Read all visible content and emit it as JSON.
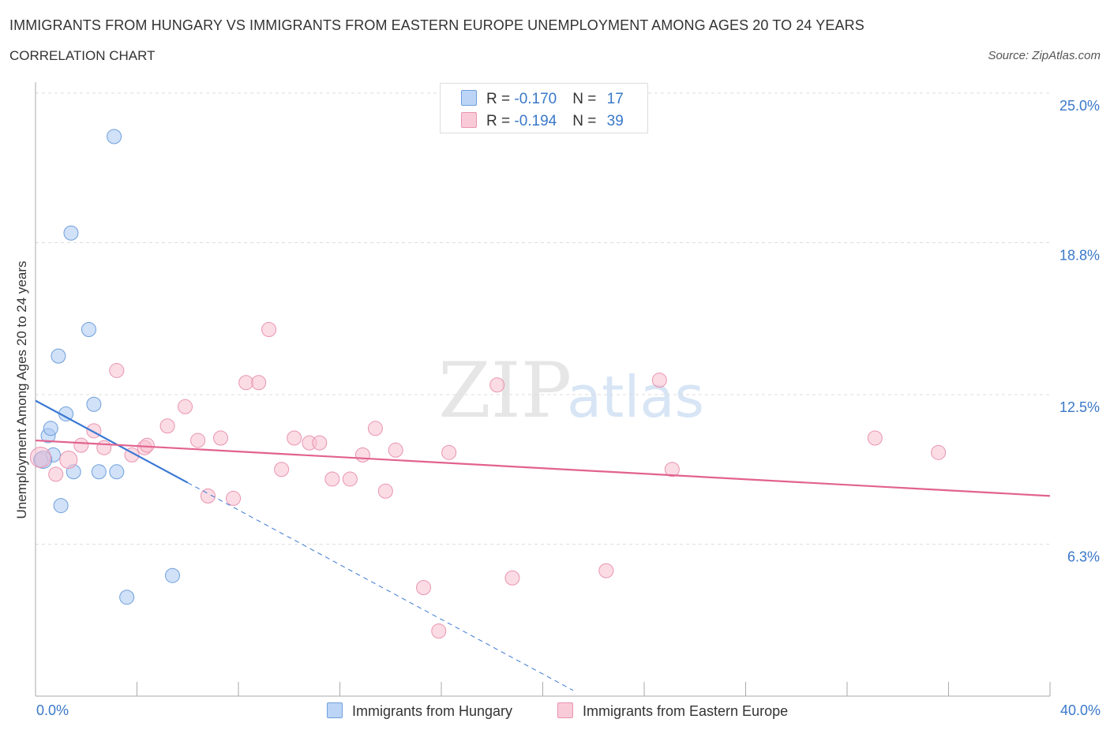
{
  "title": "IMMIGRANTS FROM HUNGARY VS IMMIGRANTS FROM EASTERN EUROPE UNEMPLOYMENT AMONG AGES 20 TO 24 YEARS",
  "subtitle": "CORRELATION CHART",
  "source": "Source: ZipAtlas.com",
  "watermark": {
    "zip": "ZIP",
    "atlas": "atlas"
  },
  "legend": {
    "hungary": {
      "r_label": "R = ",
      "r_value": "-0.170",
      "n_label": "N = ",
      "n_value": "17"
    },
    "eastern": {
      "r_label": "R = ",
      "r_value": "-0.194",
      "n_label": "N = ",
      "n_value": "39"
    }
  },
  "colors": {
    "hungary_fill": "#a9c8f2",
    "hungary_stroke": "#6f9fdc",
    "hungary_line": "#3a78d4",
    "eastern_fill": "#f7bfd0",
    "eastern_stroke": "#e994b0",
    "eastern_line": "#e2628e",
    "tick_text": "#3a78c9",
    "grid": "#dddddd"
  },
  "chart_data": {
    "type": "scatter",
    "title": "IMMIGRANTS FROM HUNGARY VS IMMIGRANTS FROM EASTERN EUROPE UNEMPLOYMENT AMONG AGES 20 TO 24 YEARS",
    "xlabel": "",
    "ylabel": "Unemployment Among Ages 20 to 24 years",
    "xlim": [
      0,
      40
    ],
    "ylim": [
      0,
      25
    ],
    "x_tick_labels": [
      "0.0%",
      "40.0%"
    ],
    "y_ticks": [
      6.3,
      12.5,
      18.8,
      25.0
    ],
    "y_tick_labels": [
      "6.3%",
      "12.5%",
      "18.8%",
      "25.0%"
    ],
    "grid": true,
    "legend_position": "top-center",
    "series": [
      {
        "name": "Immigrants from Hungary",
        "color_key": "hungary",
        "R": -0.17,
        "N": 17,
        "trend": {
          "x0": 0,
          "y0": 12.25,
          "x1": 6.0,
          "y1": 8.85,
          "dash_to_x": 21.2
        },
        "points": [
          [
            0.2,
            9.8
          ],
          [
            0.5,
            10.8
          ],
          [
            0.6,
            11.1
          ],
          [
            0.7,
            10.0
          ],
          [
            1.0,
            7.9
          ],
          [
            1.2,
            11.7
          ],
          [
            1.4,
            19.2
          ],
          [
            1.5,
            9.3
          ],
          [
            2.1,
            15.2
          ],
          [
            2.3,
            12.1
          ],
          [
            3.1,
            23.2
          ],
          [
            3.2,
            9.3
          ],
          [
            0.9,
            14.1
          ],
          [
            2.5,
            9.3
          ],
          [
            3.6,
            4.1
          ],
          [
            5.4,
            5.0
          ],
          [
            0.3,
            9.8
          ]
        ],
        "sizes": [
          9,
          9,
          9,
          9,
          9,
          9,
          9,
          9,
          9,
          9,
          9,
          9,
          9,
          9,
          9,
          9,
          11
        ]
      },
      {
        "name": "Immigrants from Eastern Europe",
        "color_key": "eastern",
        "R": -0.194,
        "N": 39,
        "trend": {
          "x0": 0,
          "y0": 10.6,
          "x1": 40,
          "y1": 8.3
        },
        "points": [
          [
            0.2,
            9.9
          ],
          [
            0.8,
            9.2
          ],
          [
            1.3,
            9.8
          ],
          [
            1.8,
            10.4
          ],
          [
            2.3,
            11.0
          ],
          [
            2.7,
            10.3
          ],
          [
            3.2,
            13.5
          ],
          [
            3.8,
            10.0
          ],
          [
            4.3,
            10.3
          ],
          [
            4.4,
            10.4
          ],
          [
            5.2,
            11.2
          ],
          [
            5.9,
            12.0
          ],
          [
            6.4,
            10.6
          ],
          [
            6.8,
            8.3
          ],
          [
            7.3,
            10.7
          ],
          [
            7.8,
            8.2
          ],
          [
            8.3,
            13.0
          ],
          [
            8.8,
            13.0
          ],
          [
            9.2,
            15.2
          ],
          [
            9.7,
            9.4
          ],
          [
            10.2,
            10.7
          ],
          [
            10.8,
            10.5
          ],
          [
            11.2,
            10.5
          ],
          [
            11.7,
            9.0
          ],
          [
            12.4,
            9.0
          ],
          [
            12.9,
            10.0
          ],
          [
            13.4,
            11.1
          ],
          [
            13.8,
            8.5
          ],
          [
            14.2,
            10.2
          ],
          [
            15.3,
            4.5
          ],
          [
            15.9,
            2.7
          ],
          [
            16.3,
            10.1
          ],
          [
            18.2,
            12.9
          ],
          [
            18.8,
            4.9
          ],
          [
            22.5,
            5.2
          ],
          [
            24.6,
            13.1
          ],
          [
            25.1,
            9.4
          ],
          [
            33.1,
            10.7
          ],
          [
            35.6,
            10.1
          ]
        ],
        "sizes": [
          13,
          9,
          11,
          9,
          9,
          9,
          9,
          9,
          9,
          9,
          9,
          9,
          9,
          9,
          9,
          9,
          9,
          9,
          9,
          9,
          9,
          9,
          9,
          9,
          9,
          9,
          9,
          9,
          9,
          9,
          9,
          9,
          9,
          9,
          9,
          9,
          9,
          9,
          9
        ]
      }
    ]
  },
  "bottom_legend": {
    "hungary": "Immigrants from Hungary",
    "eastern": "Immigrants from Eastern Europe"
  }
}
